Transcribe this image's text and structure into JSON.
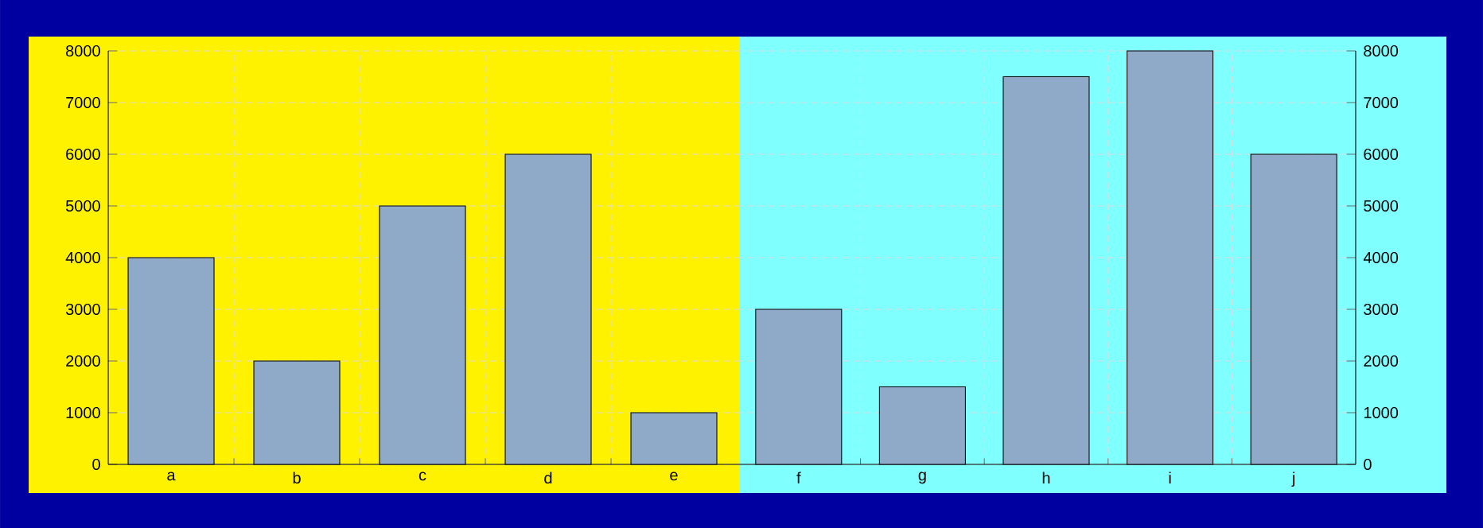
{
  "chart_data": [
    {
      "type": "bar",
      "categories": [
        "a",
        "b",
        "c",
        "d",
        "e"
      ],
      "values": [
        4000,
        2000,
        5000,
        6000,
        1000
      ],
      "color": "#8fa9c8",
      "ylim": [
        0,
        8000
      ],
      "yticks": [
        0,
        1000,
        2000,
        3000,
        4000,
        5000,
        6000,
        7000,
        8000
      ],
      "grid": true
    },
    {
      "type": "bar",
      "categories": [
        "f",
        "g",
        "h",
        "i",
        "j"
      ],
      "series": [
        {
          "color": "#8fa9c8",
          "axis": "y2",
          "values": [
            3000,
            1500,
            7500,
            8000,
            6000
          ]
        }
      ],
      "y2lim": [
        0,
        8000
      ],
      "y2ticks": [
        0,
        1000,
        2000,
        3000,
        4000,
        5000,
        6000,
        7000,
        8000
      ],
      "grid": true
    }
  ]
}
